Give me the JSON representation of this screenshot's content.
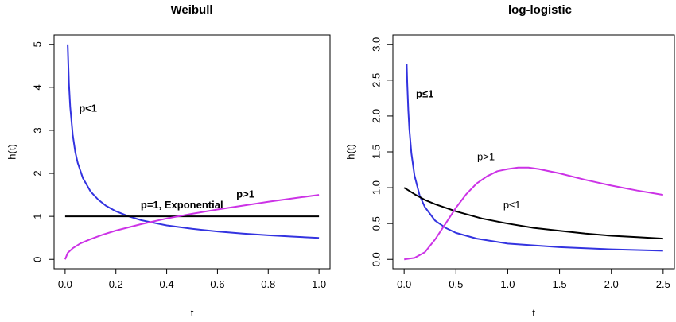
{
  "chart_data": [
    {
      "type": "line",
      "title": "Weibull",
      "xlabel": "t",
      "ylabel": "h(t)",
      "xlim": [
        0.0,
        1.0
      ],
      "ylim": [
        0,
        5
      ],
      "xticks": [
        "0.0",
        "0.2",
        "0.4",
        "0.6",
        "0.8",
        "1.0"
      ],
      "yticks": [
        "0",
        "1",
        "2",
        "3",
        "4",
        "5"
      ],
      "grid": false,
      "series": [
        {
          "color": "#3333e0",
          "x": [
            0.01,
            0.015,
            0.02,
            0.03,
            0.04,
            0.05,
            0.07,
            0.1,
            0.13,
            0.16,
            0.2,
            0.25,
            0.3,
            0.35,
            0.4,
            0.5,
            0.6,
            0.7,
            0.8,
            0.9,
            1.0
          ],
          "values": [
            5.0,
            4.08,
            3.54,
            2.89,
            2.5,
            2.24,
            1.89,
            1.58,
            1.39,
            1.25,
            1.12,
            1.0,
            0.91,
            0.85,
            0.79,
            0.71,
            0.65,
            0.6,
            0.56,
            0.53,
            0.5
          ]
        },
        {
          "color": "#000000",
          "x": [
            0.0,
            1.0
          ],
          "values": [
            1.0,
            1.0
          ]
        },
        {
          "color": "#cc33e6",
          "x": [
            0.0,
            0.01,
            0.03,
            0.06,
            0.1,
            0.15,
            0.2,
            0.3,
            0.4,
            0.5,
            0.6,
            0.7,
            0.8,
            0.9,
            1.0
          ],
          "values": [
            0.0,
            0.15,
            0.26,
            0.37,
            0.47,
            0.58,
            0.67,
            0.82,
            0.95,
            1.06,
            1.16,
            1.25,
            1.34,
            1.42,
            1.5
          ]
        }
      ],
      "annotations": [
        {
          "text": "p<1",
          "x": 0.09,
          "y": 3.5,
          "bold": true
        },
        {
          "text": "p=1, Exponential",
          "x": 0.46,
          "y": 1.25,
          "bold": true
        },
        {
          "text": "p>1",
          "x": 0.71,
          "y": 1.5,
          "bold": true
        }
      ]
    },
    {
      "type": "line",
      "title": "log-logistic",
      "xlabel": "t",
      "ylabel": "h(t)",
      "xlim": [
        0.0,
        2.5
      ],
      "ylim": [
        0.0,
        3.0
      ],
      "xticks": [
        "0.0",
        "0.5",
        "1.0",
        "1.5",
        "2.0",
        "2.5"
      ],
      "yticks": [
        "0.0",
        "0.5",
        "1.0",
        "1.5",
        "2.0",
        "2.5",
        "3.0"
      ],
      "grid": false,
      "series": [
        {
          "color": "#3333e0",
          "x": [
            0.025,
            0.03,
            0.04,
            0.05,
            0.07,
            0.1,
            0.15,
            0.2,
            0.3,
            0.4,
            0.5,
            0.7,
            1.0,
            1.5,
            2.0,
            2.5
          ],
          "values": [
            2.72,
            2.45,
            2.08,
            1.82,
            1.48,
            1.17,
            0.89,
            0.73,
            0.54,
            0.44,
            0.37,
            0.29,
            0.22,
            0.17,
            0.14,
            0.12
          ]
        },
        {
          "color": "#000000",
          "x": [
            0.0,
            0.1,
            0.2,
            0.3,
            0.5,
            0.75,
            1.0,
            1.25,
            1.5,
            1.75,
            2.0,
            2.25,
            2.5
          ],
          "values": [
            1.0,
            0.91,
            0.83,
            0.77,
            0.67,
            0.57,
            0.5,
            0.44,
            0.4,
            0.36,
            0.33,
            0.31,
            0.29
          ]
        },
        {
          "color": "#cc33e6",
          "x": [
            0.0,
            0.05,
            0.1,
            0.2,
            0.3,
            0.4,
            0.5,
            0.6,
            0.7,
            0.8,
            0.9,
            1.0,
            1.1,
            1.2,
            1.3,
            1.5,
            1.75,
            2.0,
            2.25,
            2.5
          ],
          "values": [
            0.0,
            0.01,
            0.02,
            0.1,
            0.28,
            0.5,
            0.72,
            0.91,
            1.06,
            1.16,
            1.23,
            1.26,
            1.28,
            1.28,
            1.26,
            1.2,
            1.11,
            1.03,
            0.96,
            0.9
          ]
        }
      ],
      "annotations": [
        {
          "text": "p≤1",
          "x": 0.2,
          "y": 2.3,
          "bold": true
        },
        {
          "text": "p>1",
          "x": 0.79,
          "y": 1.42,
          "bold": false
        },
        {
          "text": "p≤1",
          "x": 1.04,
          "y": 0.75,
          "bold": false
        }
      ]
    }
  ]
}
